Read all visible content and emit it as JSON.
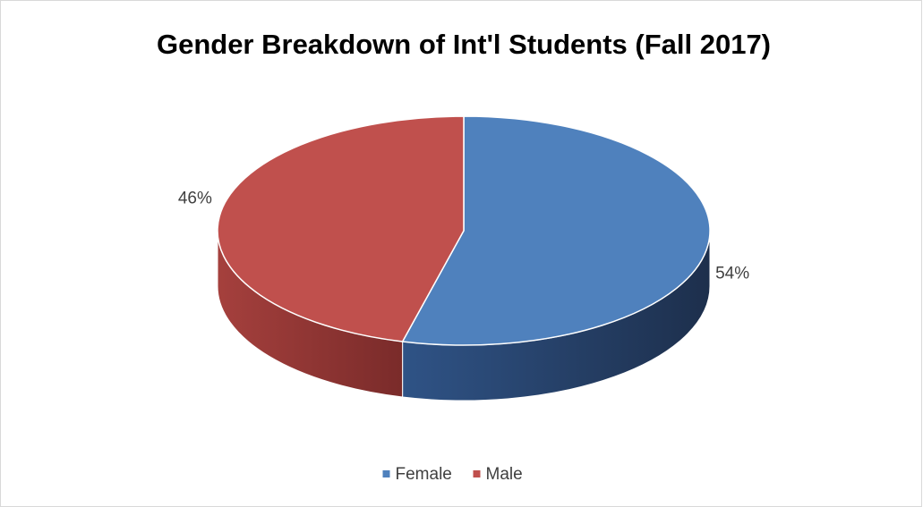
{
  "chart_data": {
    "type": "pie",
    "title": "Gender Breakdown of Int'l Students (Fall 2017)",
    "categories": [
      "Female",
      "Male"
    ],
    "values": [
      54,
      46
    ],
    "value_labels": [
      "54%",
      "46%"
    ],
    "colors": [
      "#4f81bd",
      "#c0504d"
    ],
    "legend": "bottom"
  }
}
